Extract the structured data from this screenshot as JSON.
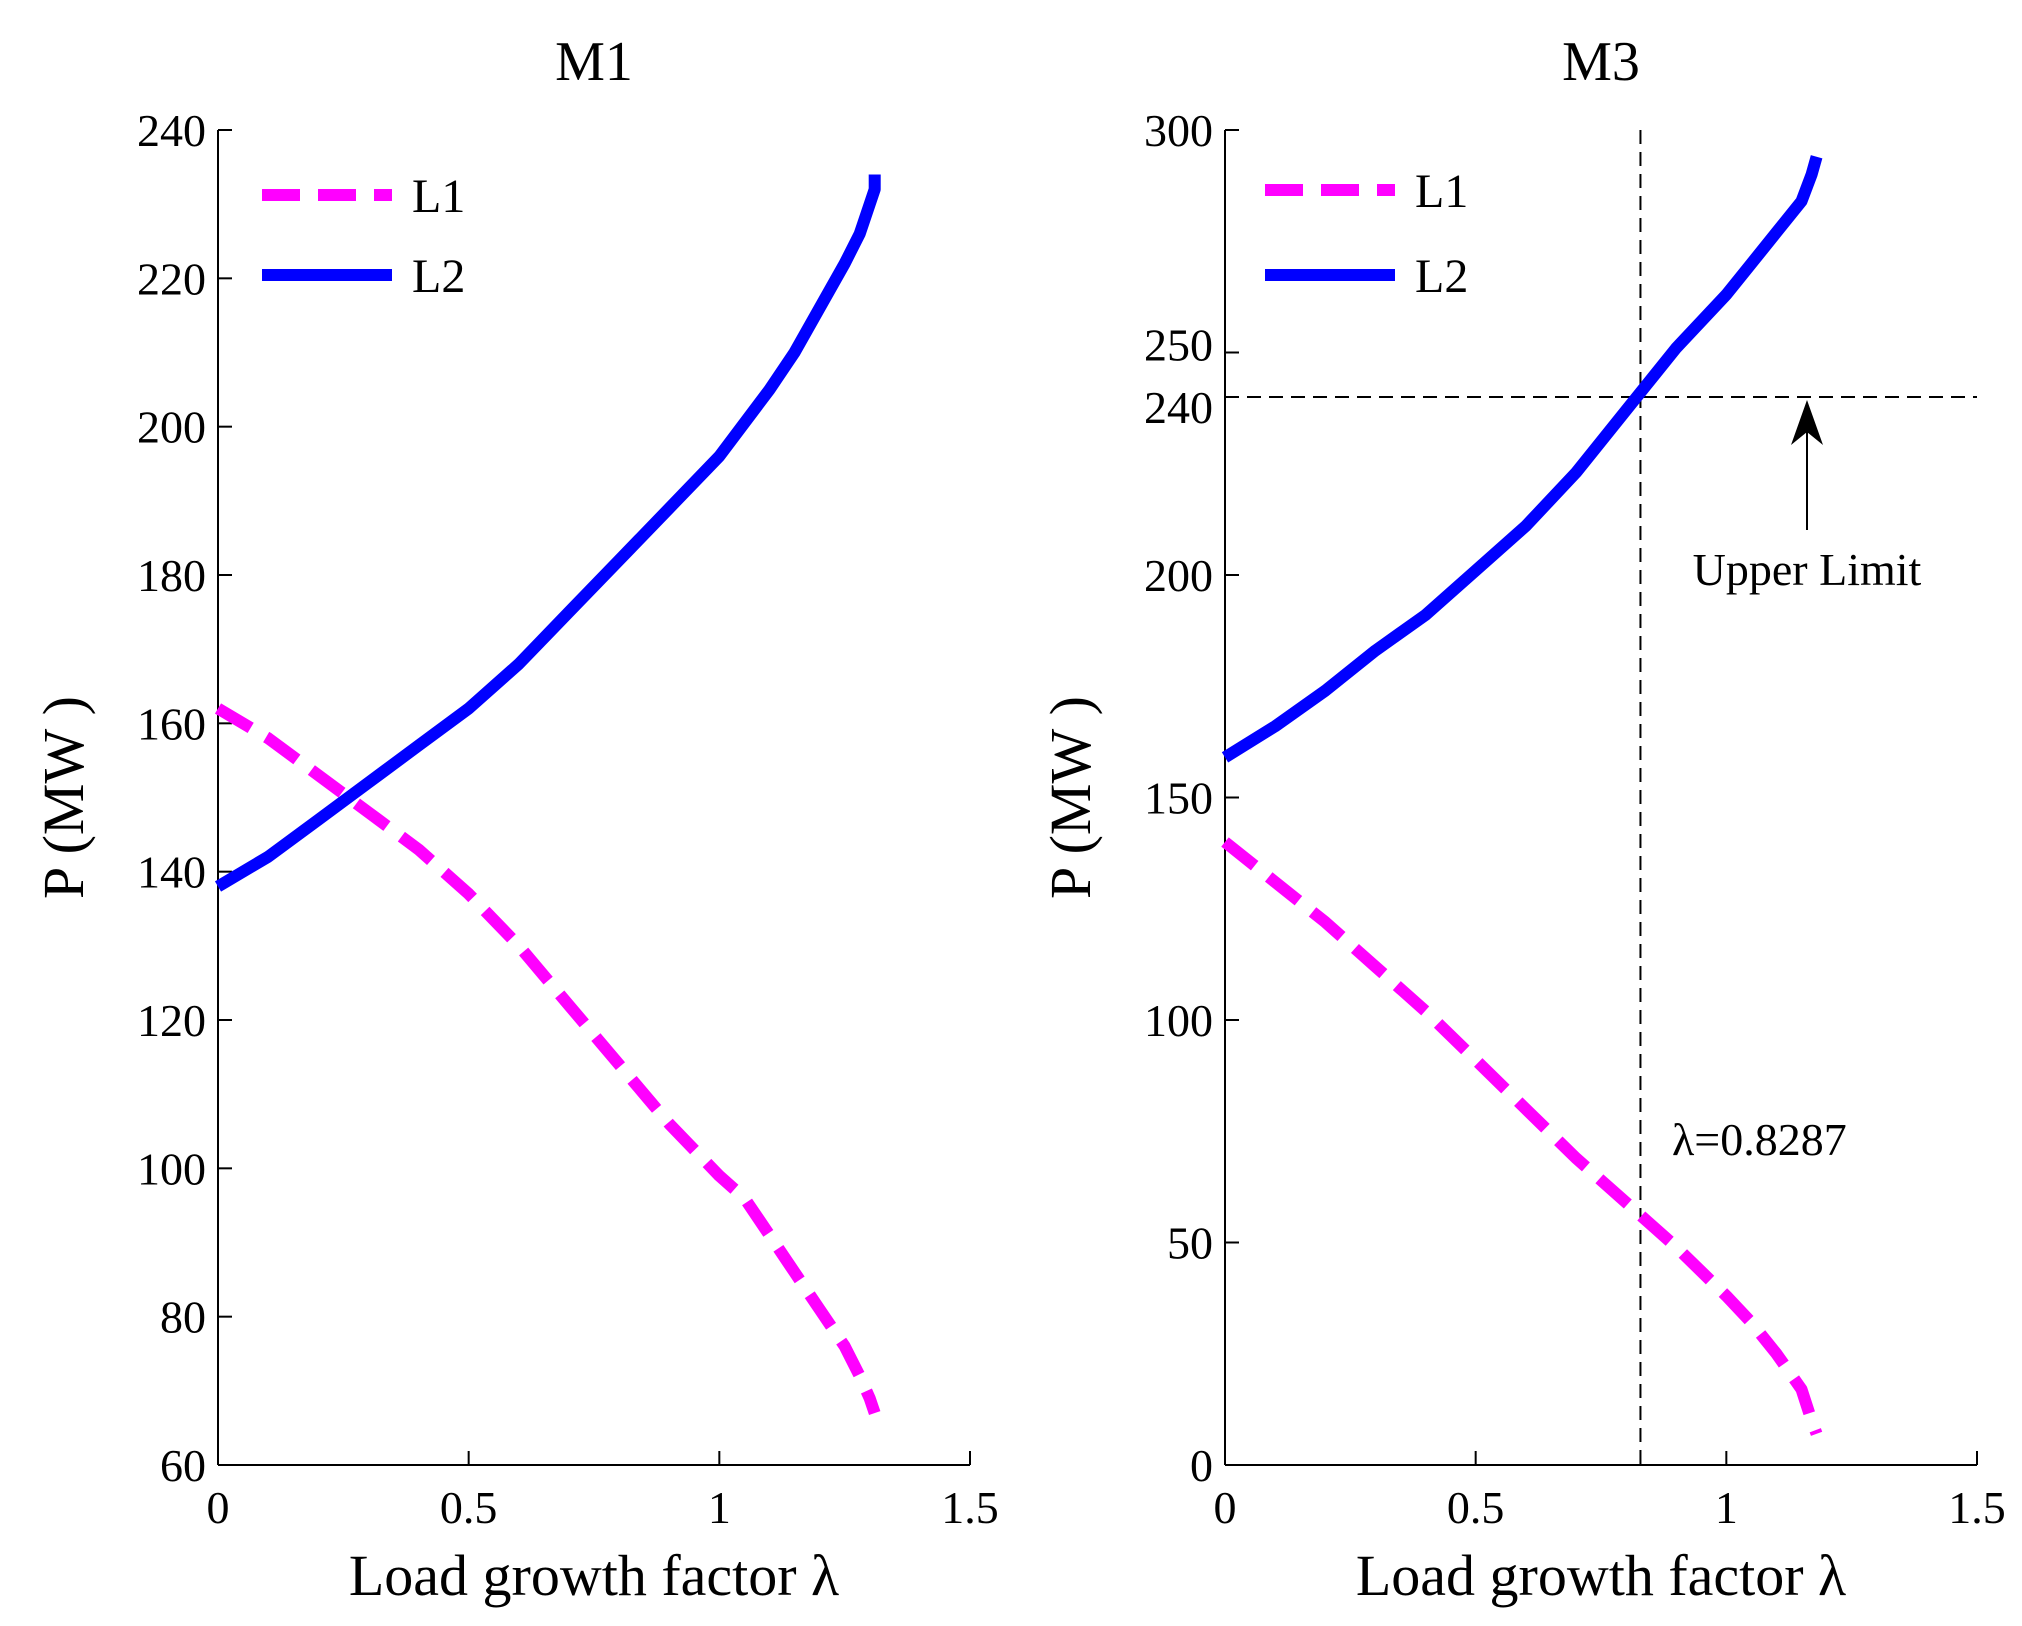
{
  "chart_data": [
    {
      "type": "line",
      "title": "M1",
      "xlabel": "Load growth factor λ",
      "ylabel": "P (MW )",
      "xlim": [
        0,
        1.5
      ],
      "ylim": [
        60,
        240
      ],
      "xticks": [
        "0",
        "0.5",
        "1",
        "1.5"
      ],
      "yticks": [
        "60",
        "80",
        "100",
        "120",
        "140",
        "160",
        "180",
        "200",
        "220",
        "240"
      ],
      "legend_position": "top-left",
      "series": [
        {
          "name": "L1",
          "color": "#ff00ff",
          "style": "dashed",
          "x": [
            0,
            0.1,
            0.2,
            0.3,
            0.4,
            0.5,
            0.6,
            0.7,
            0.8,
            0.9,
            1.0,
            1.05,
            1.1,
            1.15,
            1.2,
            1.25,
            1.28,
            1.3,
            1.31
          ],
          "y": [
            162,
            158,
            153,
            148,
            143,
            137,
            130,
            122,
            114,
            106,
            99,
            96,
            91,
            86,
            81,
            76,
            72,
            69,
            67
          ]
        },
        {
          "name": "L2",
          "color": "#0000ff",
          "style": "solid",
          "x": [
            0,
            0.1,
            0.2,
            0.3,
            0.4,
            0.5,
            0.6,
            0.7,
            0.8,
            0.9,
            1.0,
            1.1,
            1.15,
            1.2,
            1.25,
            1.28,
            1.3,
            1.31,
            1.31
          ],
          "y": [
            138,
            142,
            147,
            152,
            157,
            162,
            168,
            175,
            182,
            189,
            196,
            205,
            210,
            216,
            222,
            226,
            230,
            232,
            234
          ]
        }
      ]
    },
    {
      "type": "line",
      "title": "M3",
      "xlabel": "Load growth factor λ",
      "ylabel": "P (MW )",
      "xlim": [
        0,
        1.5
      ],
      "ylim": [
        0,
        300
      ],
      "xticks": [
        "0",
        "0.5",
        "1",
        "1.5"
      ],
      "yticks": [
        "0",
        "50",
        "100",
        "150",
        "200",
        "240",
        "250",
        "300"
      ],
      "legend_position": "top-left",
      "series": [
        {
          "name": "L1",
          "color": "#ff00ff",
          "style": "dashed",
          "x": [
            0,
            0.1,
            0.2,
            0.3,
            0.4,
            0.5,
            0.6,
            0.7,
            0.8,
            0.9,
            1.0,
            1.05,
            1.1,
            1.15,
            1.17,
            1.18
          ],
          "y": [
            140,
            131,
            122,
            112,
            102,
            91,
            80,
            69,
            59,
            49,
            38,
            32,
            25,
            17,
            10,
            7
          ]
        },
        {
          "name": "L2",
          "color": "#0000ff",
          "style": "solid",
          "x": [
            0,
            0.1,
            0.2,
            0.3,
            0.4,
            0.5,
            0.6,
            0.7,
            0.8,
            0.9,
            1.0,
            1.05,
            1.1,
            1.15,
            1.17,
            1.18
          ],
          "y": [
            159,
            166,
            174,
            183,
            191,
            201,
            211,
            223,
            237,
            251,
            263,
            270,
            277,
            284,
            290,
            294
          ]
        }
      ],
      "reference_lines": {
        "vertical_x": 0.8287,
        "horizontal_y": 240
      },
      "annotations": {
        "upper_limit": "Upper Limit",
        "lambda_value": "λ=0.8287"
      }
    }
  ]
}
